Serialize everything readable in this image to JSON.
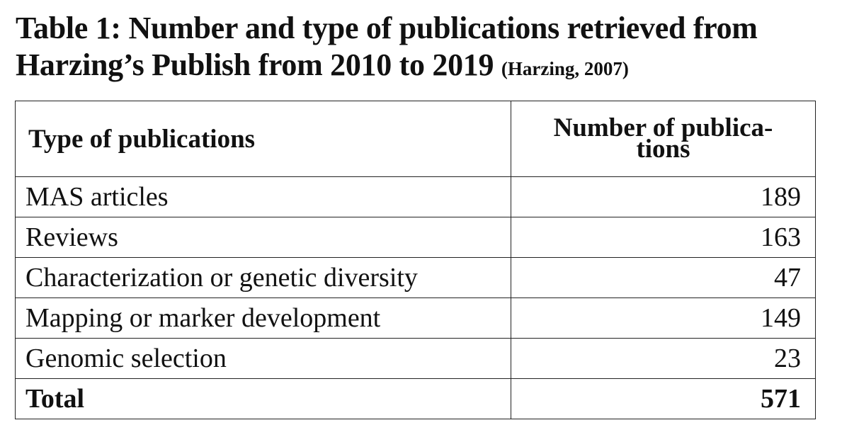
{
  "caption": {
    "main": "Table 1: Number and type of publications retrieved from Harzing’s Publish from 2010 to 2019",
    "citation": "(Harzing, 2007)"
  },
  "table": {
    "headers": [
      "Type of publications",
      "Number of publica-tions"
    ],
    "rows": [
      {
        "type": "MAS articles",
        "count": "189"
      },
      {
        "type": "Reviews",
        "count": "163"
      },
      {
        "type": "Characterization or genetic diversity",
        "count": "47"
      },
      {
        "type": "Mapping or marker development",
        "count": "149"
      },
      {
        "type": "Genomic selection",
        "count": "23"
      }
    ],
    "total": {
      "label": "Total",
      "count": "571"
    }
  }
}
